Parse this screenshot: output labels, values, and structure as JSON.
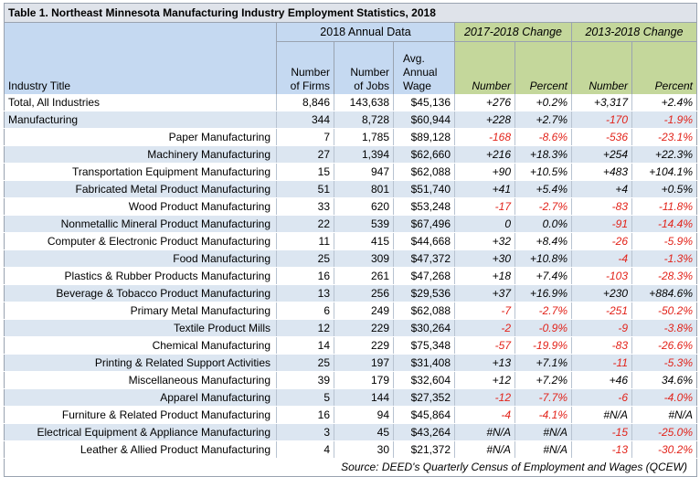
{
  "title": "Table 1.  Northeast Minnesota Manufacturing Industry Employment Statistics, 2018",
  "groups": {
    "annual": "2018 Annual Data",
    "change_1yr": "2017-2018 Change",
    "change_5yr": "2013-2018 Change"
  },
  "columns": {
    "industry": "Industry Title",
    "firms": [
      "Number",
      "of Firms"
    ],
    "jobs": [
      "Number",
      "of Jobs"
    ],
    "wage": [
      "Avg.",
      "Annual",
      "Wage"
    ],
    "c1_number": "Number",
    "c1_percent": "Percent",
    "c5_number": "Number",
    "c5_percent": "Percent"
  },
  "colors": {
    "header_blue": "#c5d9f1",
    "header_green": "#c4d79b",
    "row_stripe": "#dce6f1",
    "negative": "#e2231a"
  },
  "rows": [
    {
      "name": "Total, All Industries",
      "indent": false,
      "firms": "8,846",
      "jobs": "143,638",
      "wage": "$45,136",
      "c1n": "+276",
      "c1p": "+0.2%",
      "c5n": "+3,317",
      "c5p": "+2.4%"
    },
    {
      "name": "Manufacturing",
      "indent": false,
      "firms": "344",
      "jobs": "8,728",
      "wage": "$60,944",
      "c1n": "+228",
      "c1p": "+2.7%",
      "c5n": "-170",
      "c5p": "-1.9%"
    },
    {
      "name": "Paper Manufacturing",
      "indent": true,
      "firms": "7",
      "jobs": "1,785",
      "wage": "$89,128",
      "c1n": "-168",
      "c1p": "-8.6%",
      "c5n": "-536",
      "c5p": "-23.1%"
    },
    {
      "name": "Machinery Manufacturing",
      "indent": true,
      "firms": "27",
      "jobs": "1,394",
      "wage": "$62,660",
      "c1n": "+216",
      "c1p": "+18.3%",
      "c5n": "+254",
      "c5p": "+22.3%"
    },
    {
      "name": "Transportation Equipment Manufacturing",
      "indent": true,
      "firms": "15",
      "jobs": "947",
      "wage": "$62,088",
      "c1n": "+90",
      "c1p": "+10.5%",
      "c5n": "+483",
      "c5p": "+104.1%"
    },
    {
      "name": "Fabricated Metal Product Manufacturing",
      "indent": true,
      "firms": "51",
      "jobs": "801",
      "wage": "$51,740",
      "c1n": "+41",
      "c1p": "+5.4%",
      "c5n": "+4",
      "c5p": "+0.5%"
    },
    {
      "name": "Wood Product Manufacturing",
      "indent": true,
      "firms": "33",
      "jobs": "620",
      "wage": "$53,248",
      "c1n": "-17",
      "c1p": "-2.7%",
      "c5n": "-83",
      "c5p": "-11.8%"
    },
    {
      "name": "Nonmetallic Mineral Product Manufacturing",
      "indent": true,
      "firms": "22",
      "jobs": "539",
      "wage": "$67,496",
      "c1n": "0",
      "c1p": "0.0%",
      "c5n": "-91",
      "c5p": "-14.4%"
    },
    {
      "name": "Computer & Electronic Product Manufacturing",
      "indent": true,
      "firms": "11",
      "jobs": "415",
      "wage": "$44,668",
      "c1n": "+32",
      "c1p": "+8.4%",
      "c5n": "-26",
      "c5p": "-5.9%"
    },
    {
      "name": "Food Manufacturing",
      "indent": true,
      "firms": "25",
      "jobs": "309",
      "wage": "$47,372",
      "c1n": "+30",
      "c1p": "+10.8%",
      "c5n": "-4",
      "c5p": "-1.3%"
    },
    {
      "name": "Plastics & Rubber Products Manufacturing",
      "indent": true,
      "firms": "16",
      "jobs": "261",
      "wage": "$47,268",
      "c1n": "+18",
      "c1p": "+7.4%",
      "c5n": "-103",
      "c5p": "-28.3%"
    },
    {
      "name": "Beverage & Tobacco Product Manufacturing",
      "indent": true,
      "firms": "13",
      "jobs": "256",
      "wage": "$29,536",
      "c1n": "+37",
      "c1p": "+16.9%",
      "c5n": "+230",
      "c5p": "+884.6%"
    },
    {
      "name": "Primary Metal Manufacturing",
      "indent": true,
      "firms": "6",
      "jobs": "249",
      "wage": "$62,088",
      "c1n": "-7",
      "c1p": "-2.7%",
      "c5n": "-251",
      "c5p": "-50.2%"
    },
    {
      "name": "Textile Product Mills",
      "indent": true,
      "firms": "12",
      "jobs": "229",
      "wage": "$30,264",
      "c1n": "-2",
      "c1p": "-0.9%",
      "c5n": "-9",
      "c5p": "-3.8%"
    },
    {
      "name": "Chemical Manufacturing",
      "indent": true,
      "firms": "14",
      "jobs": "229",
      "wage": "$75,348",
      "c1n": "-57",
      "c1p": "-19.9%",
      "c5n": "-83",
      "c5p": "-26.6%"
    },
    {
      "name": "Printing & Related Support Activities",
      "indent": true,
      "firms": "25",
      "jobs": "197",
      "wage": "$31,408",
      "c1n": "+13",
      "c1p": "+7.1%",
      "c5n": "-11",
      "c5p": "-5.3%"
    },
    {
      "name": "Miscellaneous Manufacturing",
      "indent": true,
      "firms": "39",
      "jobs": "179",
      "wage": "$32,604",
      "c1n": "+12",
      "c1p": "+7.2%",
      "c5n": "+46",
      "c5p": "34.6%"
    },
    {
      "name": "Apparel Manufacturing",
      "indent": true,
      "firms": "5",
      "jobs": "144",
      "wage": "$27,352",
      "c1n": "-12",
      "c1p": "-7.7%",
      "c5n": "-6",
      "c5p": "-4.0%"
    },
    {
      "name": "Furniture & Related Product Manufacturing",
      "indent": true,
      "firms": "16",
      "jobs": "94",
      "wage": "$45,864",
      "c1n": "-4",
      "c1p": "-4.1%",
      "c5n": "#N/A",
      "c5p": "#N/A"
    },
    {
      "name": "Electrical Equipment & Appliance Manufacturing",
      "indent": true,
      "firms": "3",
      "jobs": "45",
      "wage": "$43,264",
      "c1n": "#N/A",
      "c1p": "#N/A",
      "c5n": "-15",
      "c5p": "-25.0%"
    },
    {
      "name": "Leather & Allied Product Manufacturing",
      "indent": true,
      "firms": "4",
      "jobs": "30",
      "wage": "$21,372",
      "c1n": "#N/A",
      "c1p": "#N/A",
      "c5n": "-13",
      "c5p": "-30.2%"
    }
  ],
  "source": "Source:  DEED's Quarterly Census of Employment and Wages (QCEW)"
}
